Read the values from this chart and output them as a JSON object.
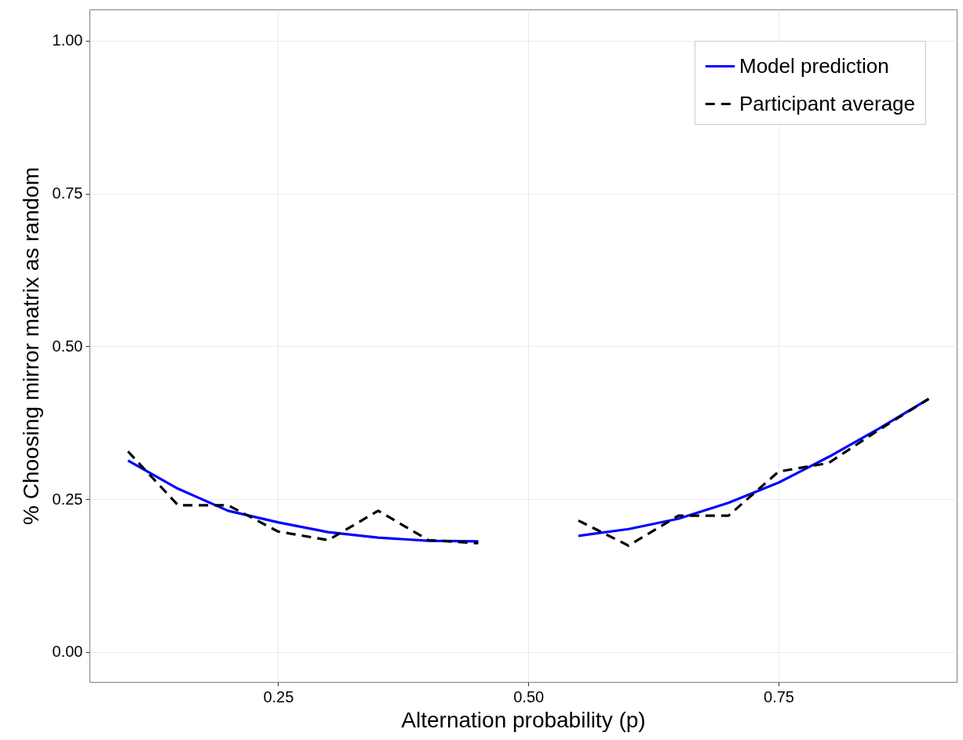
{
  "chart_data": {
    "type": "line",
    "xlabel": "Alternation probability (p)",
    "ylabel": "% Choosing mirror matrix as random",
    "x": [
      0.1,
      0.15,
      0.2,
      0.25,
      0.3,
      0.35,
      0.4,
      0.45,
      0.5,
      0.55,
      0.6,
      0.65,
      0.7,
      0.75,
      0.8,
      0.85,
      0.9
    ],
    "series": [
      {
        "name": "Model prediction",
        "color": "#0000ff",
        "line_style": "solid",
        "values": [
          0.313,
          0.267,
          0.231,
          0.212,
          0.196,
          0.187,
          0.182,
          0.181,
          null,
          0.19,
          0.201,
          0.218,
          0.244,
          0.277,
          0.319,
          0.365,
          0.414
        ]
      },
      {
        "name": "Participant average",
        "color": "#000000",
        "line_style": "dashed",
        "values": [
          0.328,
          0.24,
          0.24,
          0.197,
          0.183,
          0.231,
          0.183,
          0.178,
          null,
          0.215,
          0.174,
          0.223,
          0.223,
          0.295,
          0.309,
          0.363,
          0.414
        ]
      }
    ],
    "xlim": [
      0.0615,
      0.928
    ],
    "xticks": [
      {
        "value": 0.25,
        "label": "0.25"
      },
      {
        "value": 0.5,
        "label": "0.50"
      },
      {
        "value": 0.75,
        "label": "0.75"
      }
    ],
    "ylim": [
      -0.049,
      1.051
    ],
    "yticks": [
      {
        "value": 0,
        "label": "0.00"
      },
      {
        "value": 0.25,
        "label": "0.25"
      },
      {
        "value": 0.5,
        "label": "0.50"
      },
      {
        "value": 0.75,
        "label": "0.75"
      },
      {
        "value": 1,
        "label": "1.00"
      }
    ],
    "grid": true,
    "legend": "top right"
  }
}
